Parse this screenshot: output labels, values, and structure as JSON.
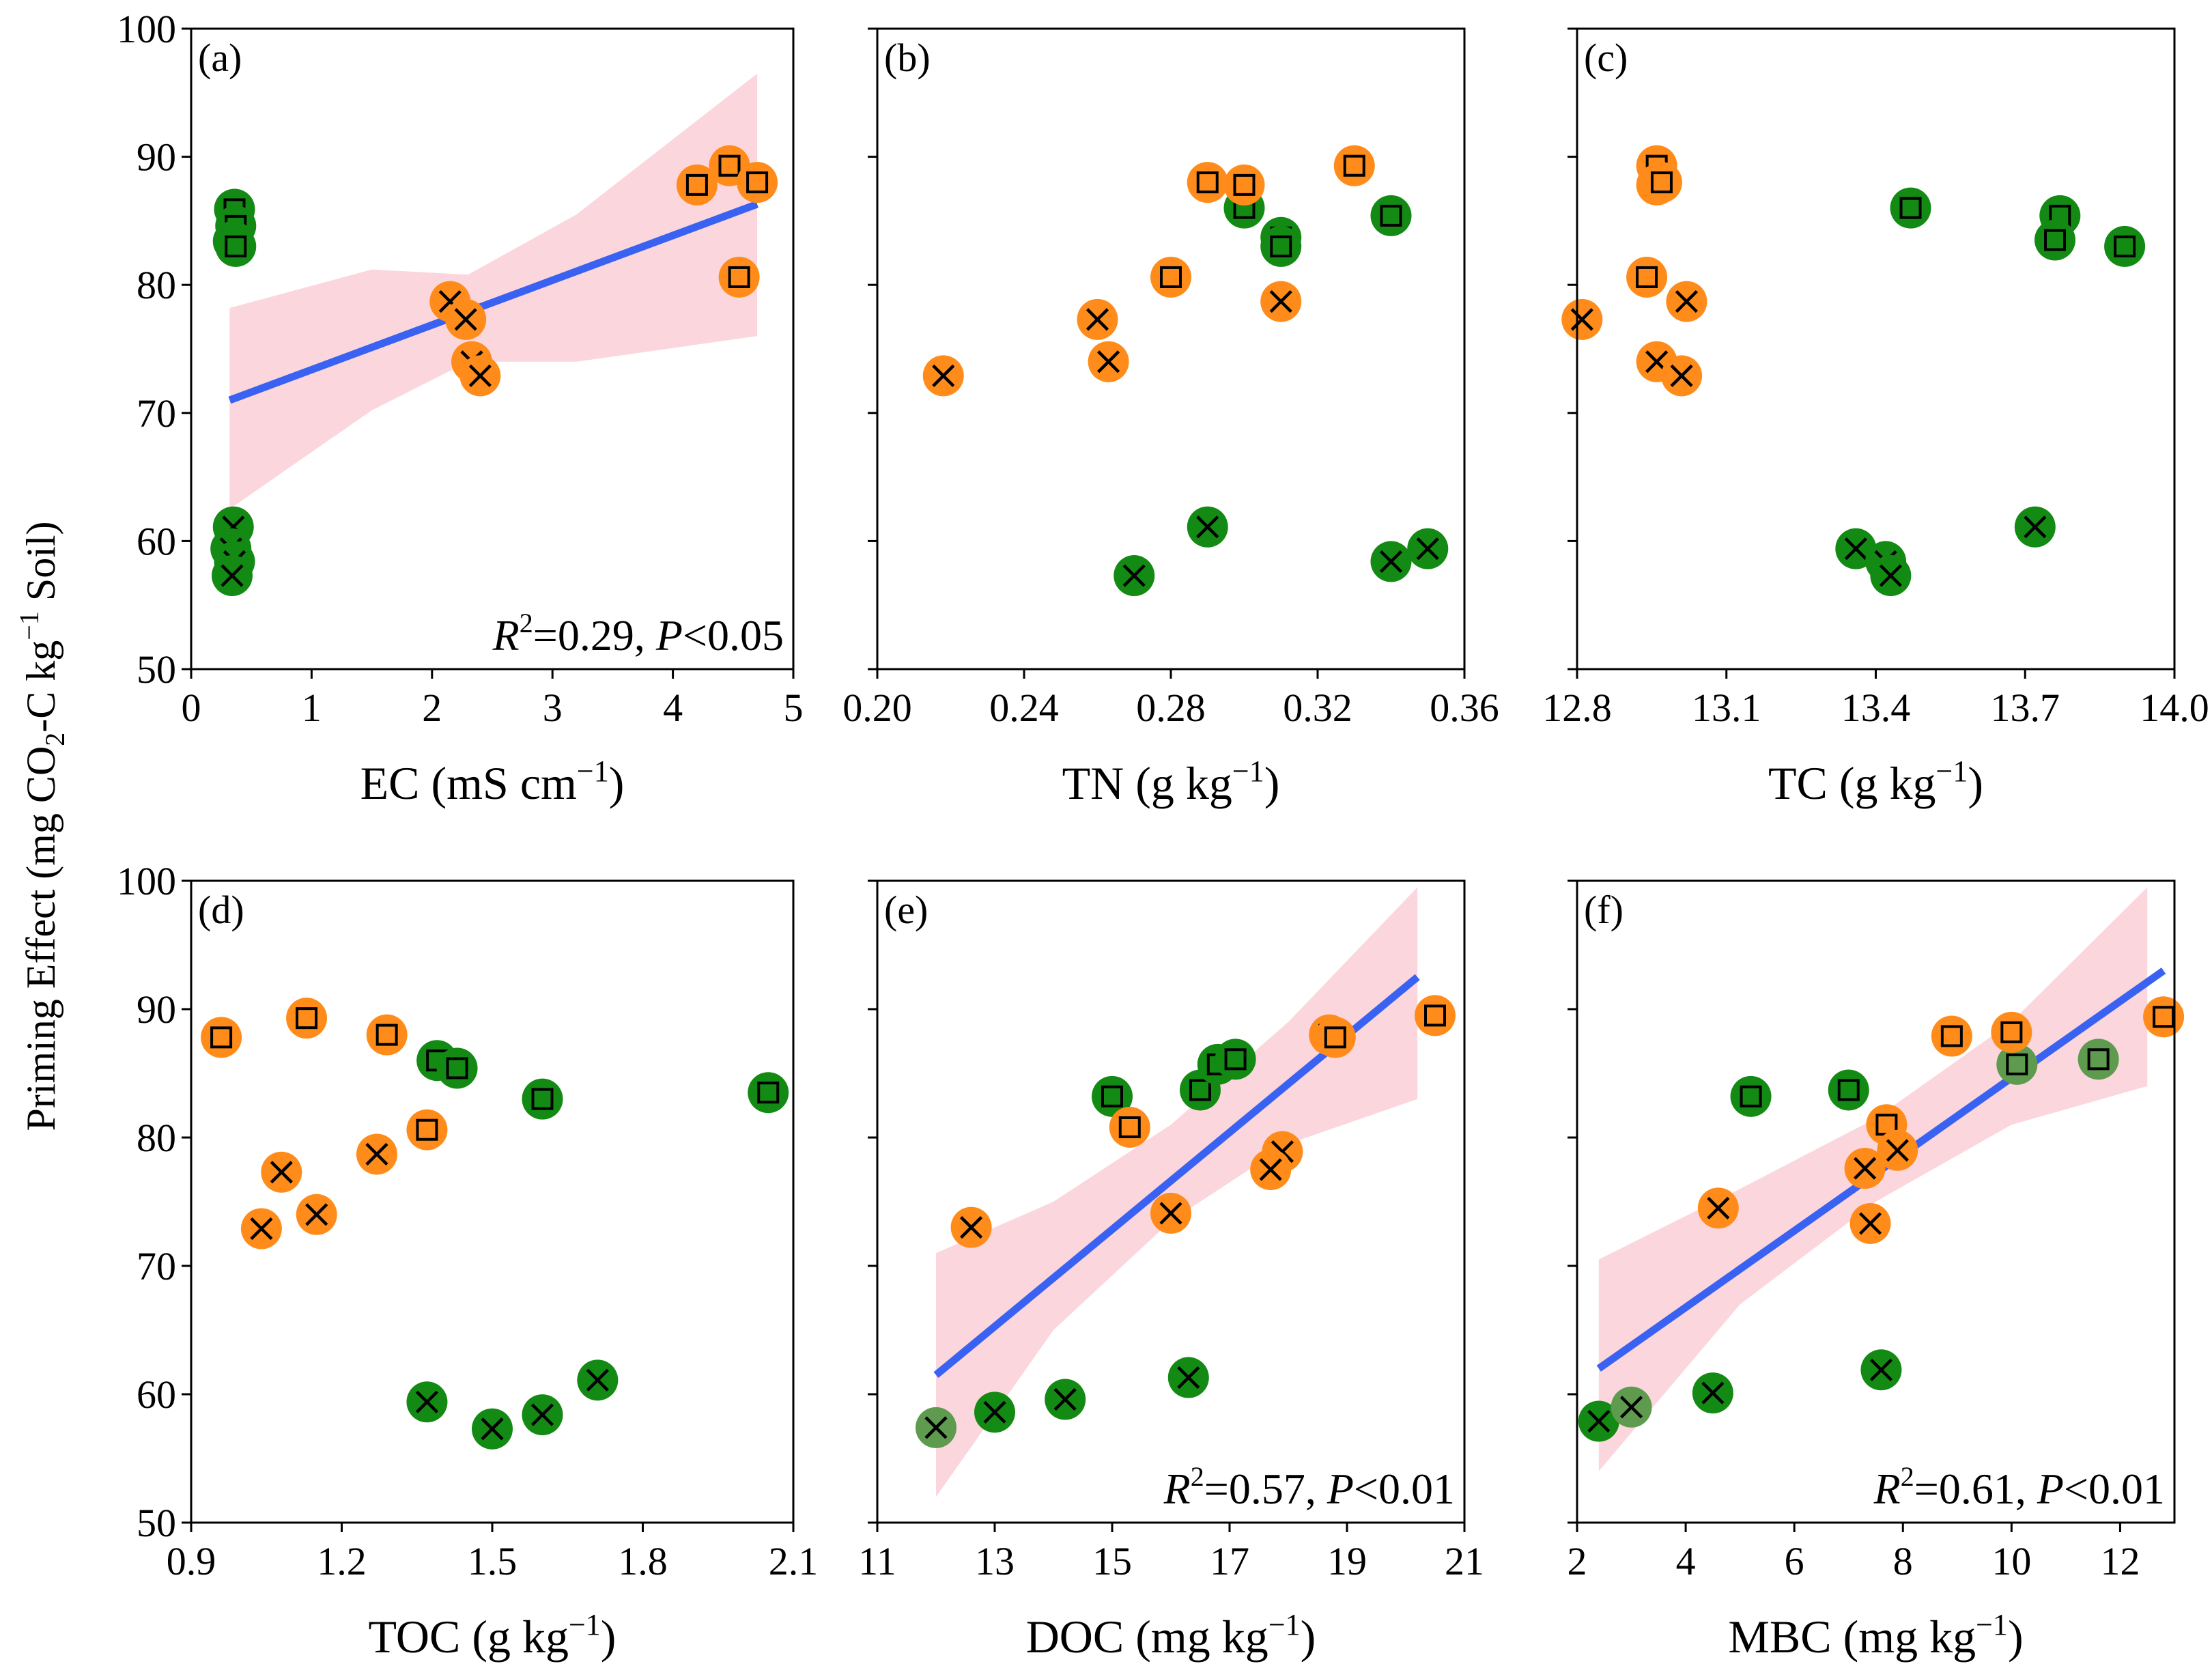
{
  "figure": {
    "y_axis_title": "Priming Effect (mg CO₂-C kg⁻¹ Soil)",
    "y_title_parts": [
      "Priming Effect (mg CO",
      "2",
      "-C kg",
      "−1",
      " Soil)"
    ]
  },
  "colors": {
    "orange": "#FF8C1A",
    "green": "#138A13",
    "green_light": "#5E9B4E",
    "fit_line": "#3A62F2",
    "ci_band": "#F9C9D1",
    "axis": "#000000"
  },
  "chart_data": [
    {
      "panel": "(a)",
      "type": "scatter",
      "xlabel": "EC (mS cm⁻¹)",
      "xlabel_parts": [
        "EC (mS cm",
        "−1",
        ")"
      ],
      "xlim": [
        0,
        5
      ],
      "xticks": [
        0,
        1,
        2,
        3,
        4,
        5
      ],
      "xtick_labels": [
        "0",
        "1",
        "2",
        "3",
        "4",
        "5"
      ],
      "ylim": [
        50,
        100
      ],
      "yticks": [
        50,
        60,
        70,
        80,
        90,
        100
      ],
      "ytick_labels": [
        "50",
        "60",
        "70",
        "80",
        "90",
        "100"
      ],
      "show_yticklabels": true,
      "stat": {
        "r2": "0.29",
        "p": "0.05"
      },
      "fit": {
        "x": [
          0.32,
          4.7
        ],
        "y": [
          71,
          86.3
        ]
      },
      "ci": {
        "x": [
          0.32,
          1.5,
          2.3,
          3.2,
          4.7
        ],
        "upper": [
          78.2,
          81.2,
          80.8,
          85.5,
          96.5
        ],
        "lower": [
          62.5,
          70.2,
          74.0,
          74.0,
          76.0
        ]
      },
      "points": [
        {
          "x": 0.36,
          "y": 85.9,
          "m": "square",
          "c": "green"
        },
        {
          "x": 0.37,
          "y": 84.6,
          "m": "square",
          "c": "green"
        },
        {
          "x": 0.35,
          "y": 83.4,
          "m": "square",
          "c": "green"
        },
        {
          "x": 0.37,
          "y": 83.0,
          "m": "square",
          "c": "green"
        },
        {
          "x": 0.35,
          "y": 61.1,
          "m": "cross",
          "c": "green"
        },
        {
          "x": 0.33,
          "y": 59.4,
          "m": "cross",
          "c": "green"
        },
        {
          "x": 0.36,
          "y": 58.4,
          "m": "cross",
          "c": "green"
        },
        {
          "x": 0.34,
          "y": 57.3,
          "m": "cross",
          "c": "green"
        },
        {
          "x": 4.2,
          "y": 87.8,
          "m": "square",
          "c": "orange"
        },
        {
          "x": 4.47,
          "y": 89.3,
          "m": "square",
          "c": "orange"
        },
        {
          "x": 4.7,
          "y": 88.0,
          "m": "square",
          "c": "orange"
        },
        {
          "x": 4.55,
          "y": 80.6,
          "m": "square",
          "c": "orange"
        },
        {
          "x": 2.15,
          "y": 78.7,
          "m": "cross",
          "c": "orange"
        },
        {
          "x": 2.28,
          "y": 77.3,
          "m": "cross",
          "c": "orange"
        },
        {
          "x": 2.33,
          "y": 74.0,
          "m": "cross",
          "c": "orange"
        },
        {
          "x": 2.4,
          "y": 72.9,
          "m": "cross",
          "c": "orange"
        }
      ]
    },
    {
      "panel": "(b)",
      "type": "scatter",
      "xlabel": "TN (g kg⁻¹)",
      "xlabel_parts": [
        "TN (g kg",
        "−1",
        ")"
      ],
      "xlim": [
        0.2,
        0.36
      ],
      "xticks": [
        0.2,
        0.24,
        0.28,
        0.32,
        0.36
      ],
      "xtick_labels": [
        "0.20",
        "0.24",
        "0.28",
        "0.32",
        "0.36"
      ],
      "ylim": [
        50,
        100
      ],
      "yticks": [
        50,
        60,
        70,
        80,
        90,
        100
      ],
      "ytick_labels": [
        "50",
        "60",
        "70",
        "80",
        "90",
        "100"
      ],
      "show_yticklabels": false,
      "stat": null,
      "fit": null,
      "ci": null,
      "points": [
        {
          "x": 0.3,
          "y": 86.0,
          "m": "square",
          "c": "green"
        },
        {
          "x": 0.31,
          "y": 83.7,
          "m": "square",
          "c": "green"
        },
        {
          "x": 0.31,
          "y": 83.0,
          "m": "square",
          "c": "green"
        },
        {
          "x": 0.34,
          "y": 85.4,
          "m": "square",
          "c": "green"
        },
        {
          "x": 0.29,
          "y": 61.1,
          "m": "cross",
          "c": "green"
        },
        {
          "x": 0.27,
          "y": 57.3,
          "m": "cross",
          "c": "green"
        },
        {
          "x": 0.34,
          "y": 58.4,
          "m": "cross",
          "c": "green"
        },
        {
          "x": 0.35,
          "y": 59.4,
          "m": "cross",
          "c": "green"
        },
        {
          "x": 0.29,
          "y": 88.0,
          "m": "square",
          "c": "orange"
        },
        {
          "x": 0.3,
          "y": 87.8,
          "m": "square",
          "c": "orange"
        },
        {
          "x": 0.33,
          "y": 89.3,
          "m": "square",
          "c": "orange"
        },
        {
          "x": 0.28,
          "y": 80.6,
          "m": "square",
          "c": "orange"
        },
        {
          "x": 0.31,
          "y": 78.7,
          "m": "cross",
          "c": "orange"
        },
        {
          "x": 0.26,
          "y": 77.3,
          "m": "cross",
          "c": "orange"
        },
        {
          "x": 0.263,
          "y": 74.0,
          "m": "cross",
          "c": "orange"
        },
        {
          "x": 0.218,
          "y": 72.9,
          "m": "cross",
          "c": "orange"
        }
      ]
    },
    {
      "panel": "(c)",
      "type": "scatter",
      "xlabel": "TC (g kg⁻¹)",
      "xlabel_parts": [
        "TC (g kg",
        "−1",
        ")"
      ],
      "xlim": [
        12.8,
        14.0
      ],
      "xticks": [
        12.8,
        13.1,
        13.4,
        13.7,
        14.0
      ],
      "xtick_labels": [
        "12.8",
        "13.1",
        "13.4",
        "13.7",
        "14.0"
      ],
      "ylim": [
        50,
        100
      ],
      "yticks": [
        50,
        60,
        70,
        80,
        90,
        100
      ],
      "ytick_labels": [
        "50",
        "60",
        "70",
        "80",
        "90",
        "100"
      ],
      "show_yticklabels": false,
      "stat": null,
      "fit": null,
      "ci": null,
      "points": [
        {
          "x": 13.47,
          "y": 86.0,
          "m": "square",
          "c": "green"
        },
        {
          "x": 13.77,
          "y": 85.4,
          "m": "square",
          "c": "green"
        },
        {
          "x": 13.76,
          "y": 83.5,
          "m": "square",
          "c": "green"
        },
        {
          "x": 13.9,
          "y": 83.0,
          "m": "square",
          "c": "green"
        },
        {
          "x": 13.72,
          "y": 61.1,
          "m": "cross",
          "c": "green"
        },
        {
          "x": 13.36,
          "y": 59.4,
          "m": "cross",
          "c": "green"
        },
        {
          "x": 13.42,
          "y": 58.4,
          "m": "cross",
          "c": "green"
        },
        {
          "x": 13.43,
          "y": 57.3,
          "m": "cross",
          "c": "green"
        },
        {
          "x": 12.96,
          "y": 89.3,
          "m": "square",
          "c": "orange"
        },
        {
          "x": 12.96,
          "y": 87.8,
          "m": "square",
          "c": "orange"
        },
        {
          "x": 12.97,
          "y": 88.0,
          "m": "square",
          "c": "orange"
        },
        {
          "x": 12.94,
          "y": 80.6,
          "m": "square",
          "c": "orange"
        },
        {
          "x": 13.02,
          "y": 78.7,
          "m": "cross",
          "c": "orange"
        },
        {
          "x": 12.81,
          "y": 77.3,
          "m": "cross",
          "c": "orange"
        },
        {
          "x": 12.96,
          "y": 74.0,
          "m": "cross",
          "c": "orange"
        },
        {
          "x": 13.01,
          "y": 72.9,
          "m": "cross",
          "c": "orange"
        }
      ]
    },
    {
      "panel": "(d)",
      "type": "scatter",
      "xlabel": "TOC (g kg⁻¹)",
      "xlabel_parts": [
        "TOC (g kg",
        "−1",
        ")"
      ],
      "xlim": [
        0.9,
        2.1
      ],
      "xticks": [
        0.9,
        1.2,
        1.5,
        1.8,
        2.1
      ],
      "xtick_labels": [
        "0.9",
        "1.2",
        "1.5",
        "1.8",
        "2.1"
      ],
      "ylim": [
        50,
        100
      ],
      "yticks": [
        50,
        60,
        70,
        80,
        90,
        100
      ],
      "ytick_labels": [
        "50",
        "60",
        "70",
        "80",
        "90",
        "100"
      ],
      "show_yticklabels": true,
      "stat": null,
      "fit": null,
      "ci": null,
      "points": [
        {
          "x": 1.39,
          "y": 86.0,
          "m": "square",
          "c": "green"
        },
        {
          "x": 1.43,
          "y": 85.4,
          "m": "square",
          "c": "green"
        },
        {
          "x": 1.6,
          "y": 83.0,
          "m": "square",
          "c": "green"
        },
        {
          "x": 2.05,
          "y": 83.5,
          "m": "square",
          "c": "green"
        },
        {
          "x": 1.37,
          "y": 59.4,
          "m": "cross",
          "c": "green"
        },
        {
          "x": 1.5,
          "y": 57.3,
          "m": "cross",
          "c": "green"
        },
        {
          "x": 1.6,
          "y": 58.4,
          "m": "cross",
          "c": "green"
        },
        {
          "x": 1.71,
          "y": 61.1,
          "m": "cross",
          "c": "green"
        },
        {
          "x": 0.96,
          "y": 87.8,
          "m": "square",
          "c": "orange"
        },
        {
          "x": 1.13,
          "y": 89.3,
          "m": "square",
          "c": "orange"
        },
        {
          "x": 1.29,
          "y": 88.0,
          "m": "square",
          "c": "orange"
        },
        {
          "x": 1.37,
          "y": 80.6,
          "m": "square",
          "c": "orange"
        },
        {
          "x": 1.27,
          "y": 78.7,
          "m": "cross",
          "c": "orange"
        },
        {
          "x": 1.08,
          "y": 77.3,
          "m": "cross",
          "c": "orange"
        },
        {
          "x": 1.15,
          "y": 74.0,
          "m": "cross",
          "c": "orange"
        },
        {
          "x": 1.04,
          "y": 72.9,
          "m": "cross",
          "c": "orange"
        }
      ]
    },
    {
      "panel": "(e)",
      "type": "scatter",
      "xlabel": "DOC (mg kg⁻¹)",
      "xlabel_parts": [
        "DOC (mg kg",
        "−1",
        ")"
      ],
      "xlim": [
        11,
        21
      ],
      "xticks": [
        11,
        13,
        15,
        17,
        19,
        21
      ],
      "xtick_labels": [
        "11",
        "13",
        "15",
        "17",
        "19",
        "21"
      ],
      "ylim": [
        50,
        100
      ],
      "yticks": [
        50,
        60,
        70,
        80,
        90,
        100
      ],
      "ytick_labels": [
        "50",
        "60",
        "70",
        "80",
        "90",
        "100"
      ],
      "show_yticklabels": false,
      "stat": {
        "r2": "0.57",
        "p": "0.01"
      },
      "fit": {
        "x": [
          12.0,
          20.2
        ],
        "y": [
          61.5,
          92.5
        ]
      },
      "ci": {
        "x": [
          12.0,
          14.0,
          16.0,
          18.0,
          20.2
        ],
        "upper": [
          71.0,
          75.0,
          81.0,
          89.0,
          99.5
        ],
        "lower": [
          52.0,
          65.0,
          73.5,
          79.5,
          83.0
        ]
      },
      "points": [
        {
          "x": 15.0,
          "y": 83.2,
          "m": "square",
          "c": "green"
        },
        {
          "x": 16.5,
          "y": 83.7,
          "m": "square",
          "c": "green"
        },
        {
          "x": 16.8,
          "y": 85.7,
          "m": "square",
          "c": "green"
        },
        {
          "x": 17.1,
          "y": 86.1,
          "m": "square",
          "c": "green"
        },
        {
          "x": 12.0,
          "y": 57.4,
          "m": "cross",
          "c": "green_light"
        },
        {
          "x": 13.0,
          "y": 58.6,
          "m": "cross",
          "c": "green"
        },
        {
          "x": 14.2,
          "y": 59.6,
          "m": "cross",
          "c": "green"
        },
        {
          "x": 16.3,
          "y": 61.3,
          "m": "cross",
          "c": "green"
        },
        {
          "x": 18.7,
          "y": 88.0,
          "m": "square",
          "c": "orange"
        },
        {
          "x": 18.8,
          "y": 87.8,
          "m": "square",
          "c": "orange"
        },
        {
          "x": 20.5,
          "y": 89.5,
          "m": "square",
          "c": "orange"
        },
        {
          "x": 15.3,
          "y": 80.8,
          "m": "square",
          "c": "orange"
        },
        {
          "x": 17.9,
          "y": 78.9,
          "m": "cross",
          "c": "orange"
        },
        {
          "x": 17.7,
          "y": 77.5,
          "m": "cross",
          "c": "orange"
        },
        {
          "x": 16.0,
          "y": 74.1,
          "m": "cross",
          "c": "orange"
        },
        {
          "x": 12.6,
          "y": 73.0,
          "m": "cross",
          "c": "orange"
        }
      ]
    },
    {
      "panel": "(f)",
      "type": "scatter",
      "xlabel": "MBC (mg kg⁻¹)",
      "xlabel_parts": [
        "MBC (mg kg",
        "−1",
        ")"
      ],
      "xlim": [
        2,
        13
      ],
      "xticks": [
        2,
        4,
        6,
        8,
        10,
        12
      ],
      "xtick_labels": [
        "2",
        "4",
        "6",
        "8",
        "10",
        "12"
      ],
      "ylim": [
        50,
        100
      ],
      "yticks": [
        50,
        60,
        70,
        80,
        90,
        100
      ],
      "ytick_labels": [
        "50",
        "60",
        "70",
        "80",
        "90",
        "100"
      ],
      "show_yticklabels": false,
      "stat": {
        "r2": "0.61",
        "p": "0.01"
      },
      "fit": {
        "x": [
          2.4,
          12.8
        ],
        "y": [
          62.0,
          93.0
        ]
      },
      "ci": {
        "x": [
          2.4,
          5.0,
          7.5,
          10.0,
          12.5
        ],
        "upper": [
          70.5,
          76.0,
          81.5,
          89.0,
          99.5
        ],
        "lower": [
          54.0,
          67.0,
          75.0,
          81.0,
          84.0
        ]
      },
      "points": [
        {
          "x": 5.2,
          "y": 83.2,
          "m": "square",
          "c": "green"
        },
        {
          "x": 7.0,
          "y": 83.7,
          "m": "square",
          "c": "green"
        },
        {
          "x": 10.1,
          "y": 85.7,
          "m": "square",
          "c": "green_light"
        },
        {
          "x": 11.6,
          "y": 86.1,
          "m": "square",
          "c": "green_light"
        },
        {
          "x": 2.4,
          "y": 57.9,
          "m": "cross",
          "c": "green"
        },
        {
          "x": 3.0,
          "y": 59.0,
          "m": "cross",
          "c": "green_light"
        },
        {
          "x": 4.5,
          "y": 60.1,
          "m": "cross",
          "c": "green"
        },
        {
          "x": 7.6,
          "y": 61.9,
          "m": "cross",
          "c": "green"
        },
        {
          "x": 8.9,
          "y": 87.9,
          "m": "square",
          "c": "orange"
        },
        {
          "x": 10.0,
          "y": 88.2,
          "m": "square",
          "c": "orange"
        },
        {
          "x": 12.8,
          "y": 89.4,
          "m": "square",
          "c": "orange"
        },
        {
          "x": 7.7,
          "y": 81.0,
          "m": "square",
          "c": "orange"
        },
        {
          "x": 7.9,
          "y": 79.0,
          "m": "cross",
          "c": "orange"
        },
        {
          "x": 7.3,
          "y": 77.6,
          "m": "cross",
          "c": "orange"
        },
        {
          "x": 4.6,
          "y": 74.5,
          "m": "cross",
          "c": "orange"
        },
        {
          "x": 7.4,
          "y": 73.3,
          "m": "cross",
          "c": "orange"
        }
      ]
    }
  ]
}
